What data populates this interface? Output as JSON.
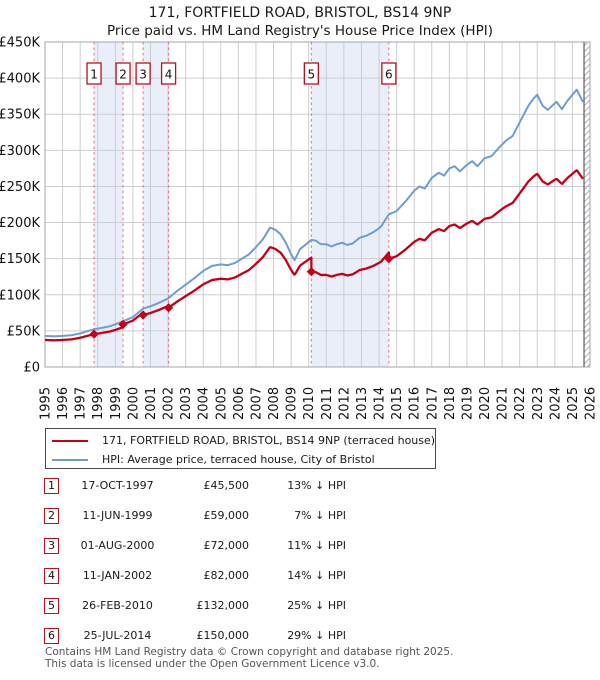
{
  "header": {
    "title": "171, FORTFIELD ROAD, BRISTOL, BS14 9NP",
    "subtitle": "Price paid vs. HM Land Registry's House Price Index (HPI)"
  },
  "chart_data": {
    "type": "line",
    "title": "171, FORTFIELD ROAD, BRISTOL, BS14 9NP",
    "subtitle": "Price paid vs. HM Land Registry's House Price Index (HPI)",
    "xlim": [
      1995,
      2026
    ],
    "ylim": [
      0,
      450000
    ],
    "grid": true,
    "legend_position": "below",
    "data_end_year": 2025.6,
    "future_hatch_start_year": 2025.66,
    "y_ticks": [
      {
        "value": 0,
        "label": "£0"
      },
      {
        "value": 50000,
        "label": "£50K"
      },
      {
        "value": 100000,
        "label": "£100K"
      },
      {
        "value": 150000,
        "label": "£150K"
      },
      {
        "value": 200000,
        "label": "£200K"
      },
      {
        "value": 250000,
        "label": "£250K"
      },
      {
        "value": 300000,
        "label": "£300K"
      },
      {
        "value": 350000,
        "label": "£350K"
      },
      {
        "value": 400000,
        "label": "£400K"
      },
      {
        "value": 450000,
        "label": "£450K"
      }
    ],
    "x_ticks": [
      "1995",
      "1996",
      "1997",
      "1998",
      "1999",
      "2000",
      "2001",
      "2002",
      "2003",
      "2004",
      "2005",
      "2006",
      "2007",
      "2008",
      "2009",
      "2010",
      "2011",
      "2012",
      "2013",
      "2014",
      "2015",
      "2016",
      "2017",
      "2018",
      "2019",
      "2020",
      "2021",
      "2022",
      "2023",
      "2024",
      "2025",
      "2026"
    ],
    "ownership_bands": [
      [
        1997.79,
        1999.44
      ],
      [
        2000.58,
        2002.03
      ],
      [
        2010.15,
        2014.56
      ]
    ],
    "series": [
      {
        "name": "HPI: Average price, terraced house, City of Bristol",
        "color": "#6f9dce",
        "role": "hpi",
        "points": [
          [
            1995.0,
            43000
          ],
          [
            1995.5,
            42500
          ],
          [
            1996.0,
            43000
          ],
          [
            1996.5,
            44000
          ],
          [
            1997.0,
            46500
          ],
          [
            1997.4,
            49500
          ],
          [
            1997.79,
            52300
          ],
          [
            1998.2,
            54000
          ],
          [
            1998.7,
            56500
          ],
          [
            1999.0,
            59000
          ],
          [
            1999.44,
            63400
          ],
          [
            2000.0,
            69000
          ],
          [
            2000.58,
            80900
          ],
          [
            2001.0,
            84000
          ],
          [
            2001.5,
            89000
          ],
          [
            2002.03,
            95300
          ],
          [
            2002.5,
            105000
          ],
          [
            2003.0,
            114000
          ],
          [
            2003.5,
            123000
          ],
          [
            2004.0,
            133000
          ],
          [
            2004.5,
            140000
          ],
          [
            2005.0,
            142000
          ],
          [
            2005.4,
            141000
          ],
          [
            2005.8,
            144000
          ],
          [
            2006.2,
            150000
          ],
          [
            2006.6,
            156000
          ],
          [
            2007.0,
            166000
          ],
          [
            2007.4,
            177000
          ],
          [
            2007.8,
            193000
          ],
          [
            2008.1,
            190000
          ],
          [
            2008.4,
            184000
          ],
          [
            2008.7,
            172000
          ],
          [
            2009.0,
            156000
          ],
          [
            2009.2,
            148000
          ],
          [
            2009.5,
            163000
          ],
          [
            2009.9,
            171000
          ],
          [
            2010.15,
            176000
          ],
          [
            2010.4,
            175000
          ],
          [
            2010.7,
            170000
          ],
          [
            2011.0,
            170000
          ],
          [
            2011.3,
            167000
          ],
          [
            2011.6,
            170000
          ],
          [
            2011.9,
            172000
          ],
          [
            2012.2,
            169000
          ],
          [
            2012.5,
            171000
          ],
          [
            2012.9,
            179000
          ],
          [
            2013.3,
            182000
          ],
          [
            2013.7,
            187000
          ],
          [
            2014.1,
            194000
          ],
          [
            2014.56,
            211300
          ],
          [
            2015.0,
            216000
          ],
          [
            2015.5,
            229000
          ],
          [
            2016.0,
            244000
          ],
          [
            2016.3,
            250000
          ],
          [
            2016.6,
            247000
          ],
          [
            2017.0,
            262000
          ],
          [
            2017.4,
            269000
          ],
          [
            2017.7,
            265000
          ],
          [
            2018.0,
            275000
          ],
          [
            2018.3,
            278000
          ],
          [
            2018.6,
            271000
          ],
          [
            2019.0,
            280000
          ],
          [
            2019.3,
            285000
          ],
          [
            2019.6,
            278000
          ],
          [
            2020.0,
            289000
          ],
          [
            2020.4,
            292000
          ],
          [
            2020.8,
            303000
          ],
          [
            2021.2,
            313000
          ],
          [
            2021.6,
            320000
          ],
          [
            2021.9,
            334000
          ],
          [
            2022.2,
            348000
          ],
          [
            2022.5,
            362000
          ],
          [
            2022.8,
            372000
          ],
          [
            2023.0,
            377000
          ],
          [
            2023.3,
            362000
          ],
          [
            2023.6,
            356000
          ],
          [
            2023.9,
            363000
          ],
          [
            2024.1,
            367000
          ],
          [
            2024.4,
            357000
          ],
          [
            2024.7,
            368000
          ],
          [
            2025.0,
            377000
          ],
          [
            2025.25,
            384000
          ],
          [
            2025.6,
            367000
          ]
        ]
      },
      {
        "name": "171, FORTFIELD ROAD, BRISTOL, BS14 9NP (terraced house)",
        "color": "#c40018",
        "role": "price-paid-scaled-to-hpi"
      }
    ],
    "transactions": [
      {
        "n": "1",
        "date": "17-OCT-1997",
        "year": 1997.79,
        "price": 45500,
        "price_label": "£45,500",
        "hpi_delta": "13% ↓ HPI"
      },
      {
        "n": "2",
        "date": "11-JUN-1999",
        "year": 1999.44,
        "price": 59000,
        "price_label": "£59,000",
        "hpi_delta": "7% ↓ HPI"
      },
      {
        "n": "3",
        "date": "01-AUG-2000",
        "year": 2000.58,
        "price": 72000,
        "price_label": "£72,000",
        "hpi_delta": "11% ↓ HPI"
      },
      {
        "n": "4",
        "date": "11-JAN-2002",
        "year": 2002.03,
        "price": 82000,
        "price_label": "£82,000",
        "hpi_delta": "14% ↓ HPI"
      },
      {
        "n": "5",
        "date": "26-FEB-2010",
        "year": 2010.15,
        "price": 132000,
        "price_label": "£132,000",
        "hpi_delta": "25% ↓ HPI"
      },
      {
        "n": "6",
        "date": "25-JUL-2014",
        "year": 2014.56,
        "price": 150000,
        "price_label": "£150,000",
        "hpi_delta": "29% ↓ HPI"
      }
    ]
  },
  "legend": {
    "items": [
      {
        "label": "171, FORTFIELD ROAD, BRISTOL, BS14 9NP (terraced house)",
        "color": "#c40018"
      },
      {
        "label": "HPI: Average price, terraced house, City of Bristol",
        "color": "#6f9dce"
      }
    ]
  },
  "footer": {
    "line1": "Contains HM Land Registry data © Crown copyright and database right 2025.",
    "line2": "This data is licensed under the Open Government Licence v3.0."
  },
  "colors": {
    "price_line": "#c40018",
    "hpi_line": "#6f9dce",
    "marker": "#c40018",
    "dashed_event_line": "#f0606e",
    "ownership_band_fill": "#e9eef9",
    "gridline": "#cdcdd2",
    "plot_border": "#a6a6ad",
    "badge_border": "#b5121f",
    "hatch": "#b0b0b5"
  }
}
